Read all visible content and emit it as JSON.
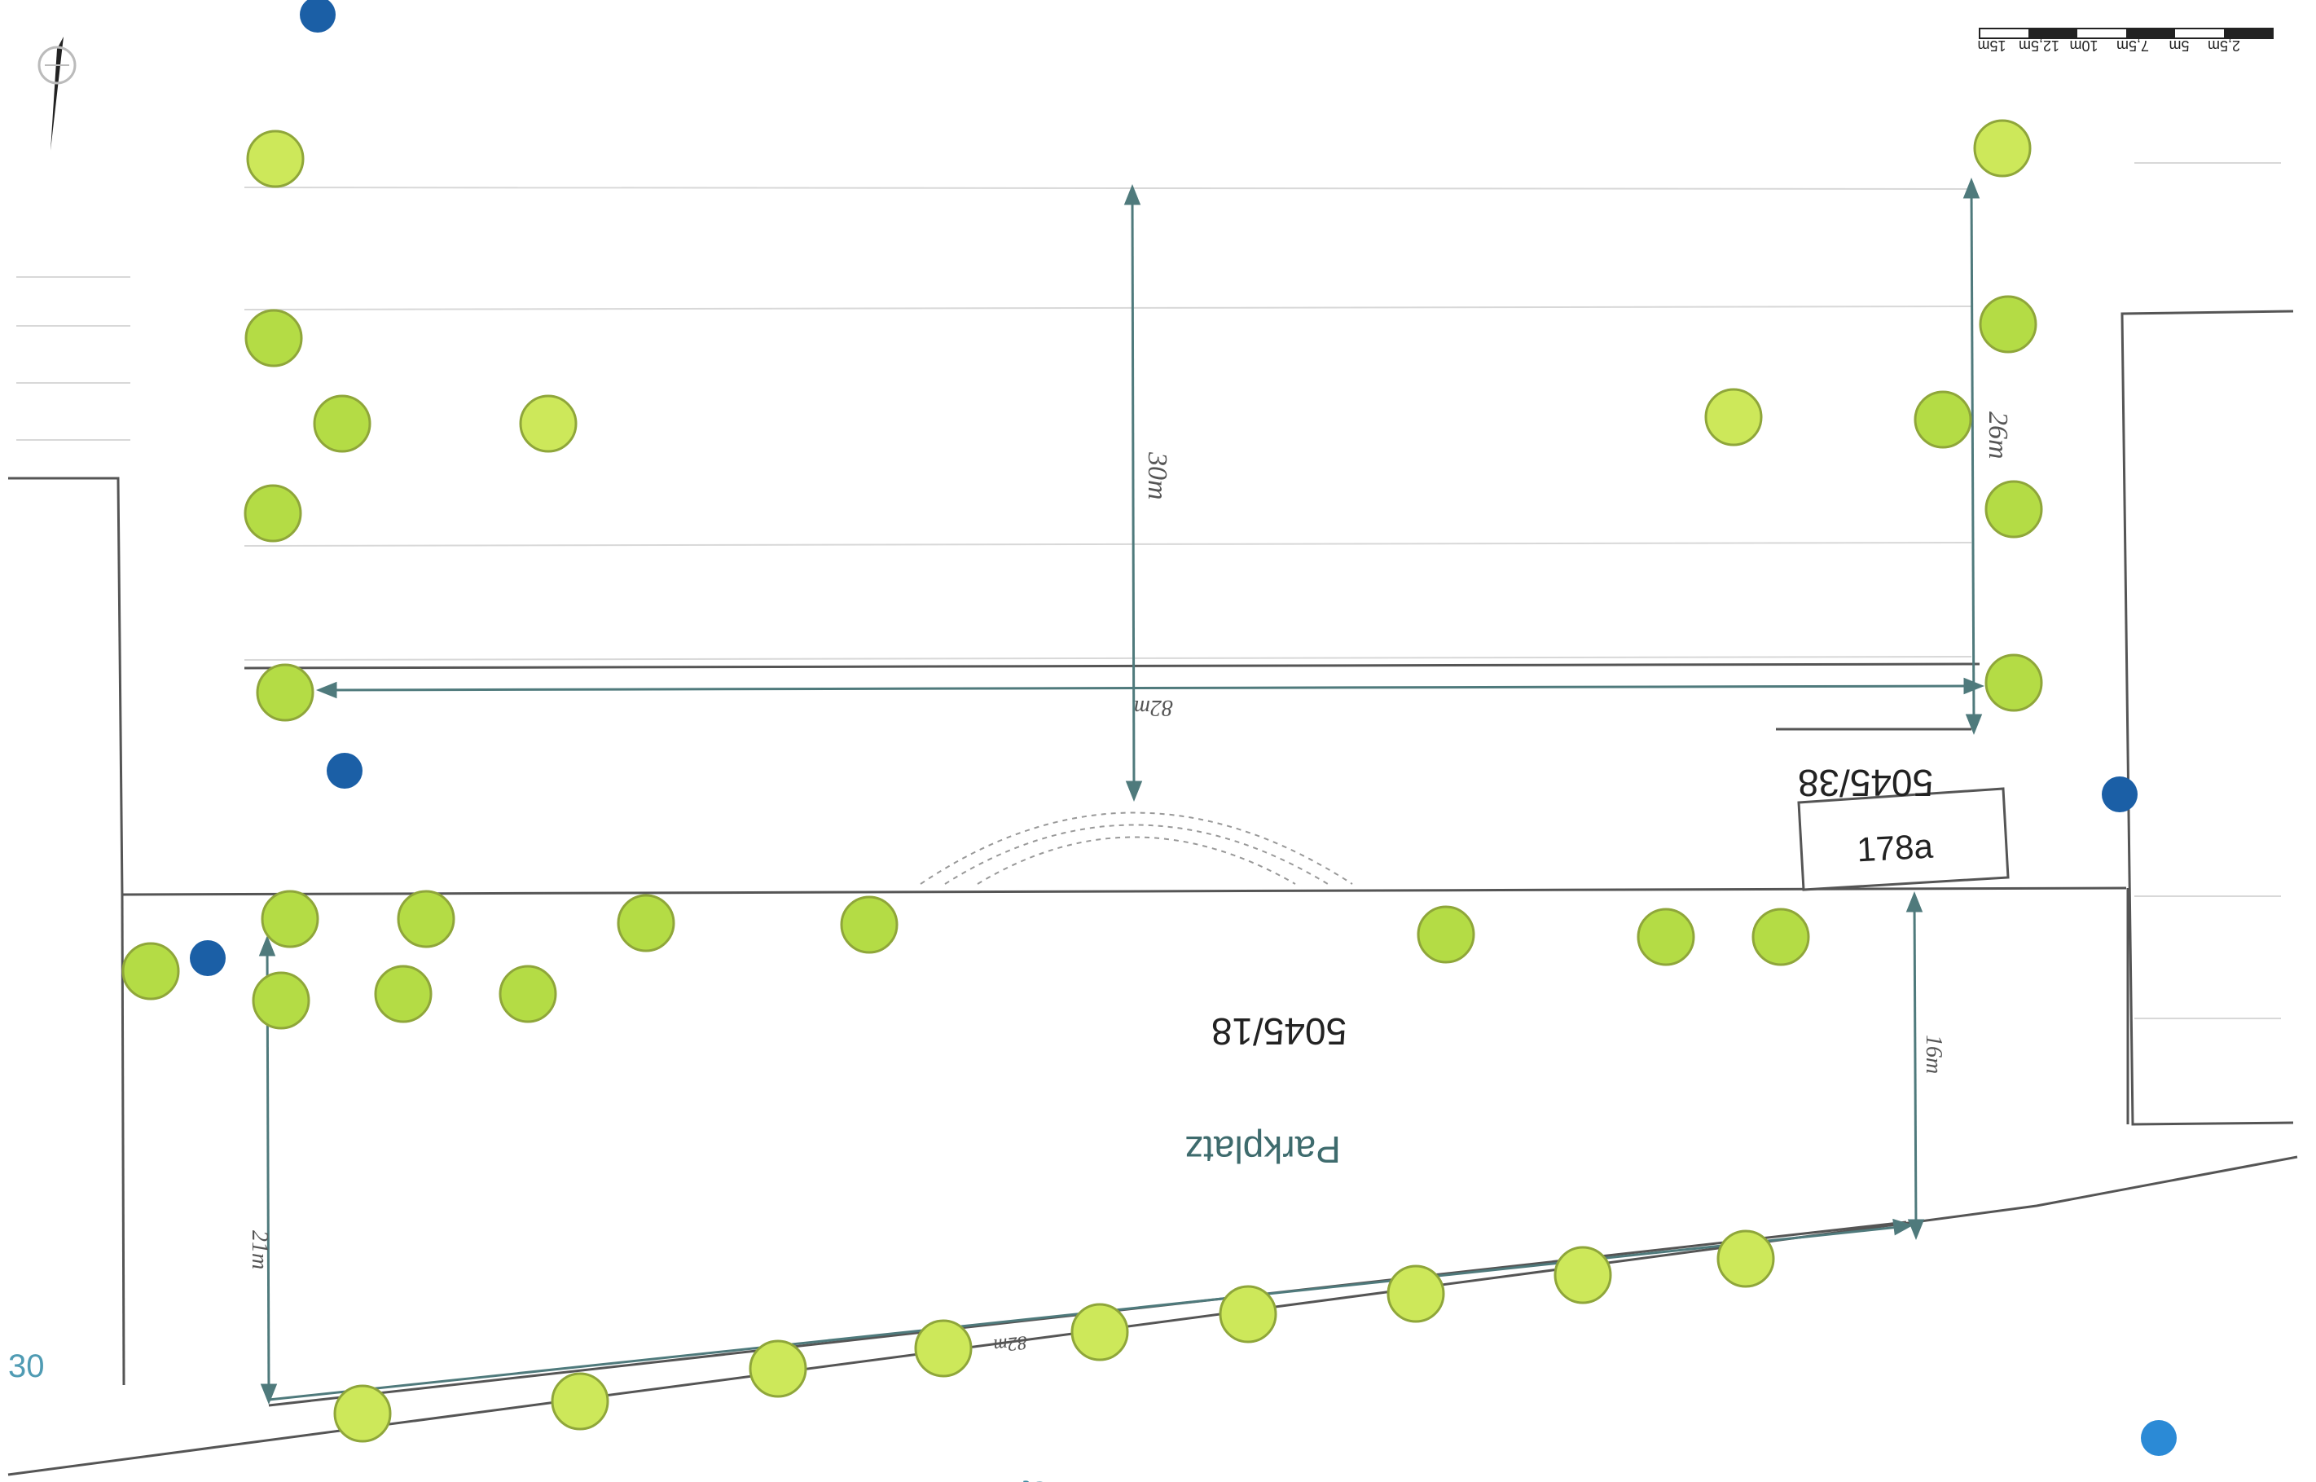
{
  "labels": {
    "parcel_upper": "5045/38",
    "parcel_lower": "5045/18",
    "building": "178a",
    "parking": "Parkplatz",
    "street": "Podelionst",
    "edge_number": "30"
  },
  "scale_bar": {
    "ticks": [
      "2,5m",
      "5m",
      "7,5m",
      "10m",
      "12,5m",
      "15m"
    ]
  },
  "dimensions": {
    "vertical_upper": "30m",
    "horizontal_upper": "82m",
    "right_upper": "26m",
    "right_lower": "16m",
    "left_lower": "21m",
    "bottom_row": "82m"
  },
  "legend_colors": {
    "tree_fill": "#cde85a",
    "tree_fill_alt": "#b4dc45",
    "tree_stroke": "#8fa63a",
    "marker_blue": "#1b5fa6",
    "line": "#555555",
    "dimension": "#4f7a7c"
  }
}
